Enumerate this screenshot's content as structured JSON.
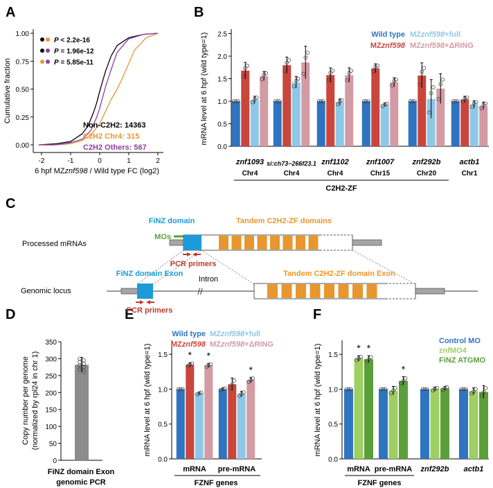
{
  "colors": {
    "wild_type": "#2f74c0",
    "mz": "#c9463d",
    "mz_full": "#8ec8e8",
    "mz_ring": "#d39ba3",
    "orange": "#e8962f",
    "purple": "#8e3da3",
    "blue_text": "#1c9bd8",
    "red_text": "#c0392b",
    "green_text": "#55a23c",
    "gray": "#8c8c8c",
    "control_mo": "#2f74c0",
    "znfmo4": "#8fc34a",
    "finz_atgmo": "#5b9f3a",
    "light_green": "#9fce62"
  },
  "panels": {
    "a": "A",
    "b": "B",
    "c": "C",
    "d": "D",
    "e": "E",
    "f": "F"
  },
  "panel_a": {
    "ylabel": "Cumulative fraction",
    "xlabel_pre": "6 hpf MZ",
    "xlabel_ital": "znf598",
    "xlabel_post": " / Wild type FC (log2)",
    "xticks": [
      "-2",
      "-1",
      "0",
      "1",
      "2"
    ],
    "yticks": [
      "0.00",
      "0.25",
      "0.50",
      "0.75",
      "1.00"
    ],
    "pvalues": [
      {
        "p": "P",
        "rest": " < 2.2e-16"
      },
      {
        "p": "P",
        "rest": " = 1.96e-12"
      },
      {
        "p": "P",
        "rest": " = 5.85e-11"
      }
    ],
    "legend": [
      "Non-C2H2: 14363",
      "C2H2 Chr4: 315",
      "C2H2 Others: 567"
    ]
  },
  "panel_b": {
    "ylabel": "mRNA level at 6 hpf (wild type=1)",
    "yticks": [
      "0.0",
      "0.5",
      "1.0",
      "1.5",
      "2.0",
      "2.5"
    ],
    "legend": {
      "wt": "Wild type",
      "mz_pre": "MZ",
      "mz_ital": "znf598",
      "full_pre": "MZ",
      "full_ital": "znf598",
      "full_post": "+full",
      "ring_pre": "MZ",
      "ring_ital": "znf598",
      "ring_post": "+ΔRING"
    },
    "genes": [
      {
        "name": "znf1093",
        "chr": "Chr4"
      },
      {
        "name": "si:ch73−266f23.1",
        "chr": "Chr4"
      },
      {
        "name": "znf1102",
        "chr": "Chr4"
      },
      {
        "name": "znf1007",
        "chr": "Chr15"
      },
      {
        "name": "znf292b",
        "chr": "Chr20"
      },
      {
        "name": "actb1",
        "chr": "Chr1"
      }
    ],
    "group_label": "C2H2-ZF"
  },
  "panel_c": {
    "processed_label": "Processed mRNAs",
    "genomic_label": "Genomic locus",
    "finz_domain": "FiNZ domain",
    "tandem_domains": "Tandem C2H2-ZF domains",
    "mos": "MOs",
    "pcr1": "PCR primers",
    "finz_exon": "FiNZ domain Exon",
    "intron": "Intron",
    "tandem_exon": "Tandem C2H2-ZF domain Exon",
    "pcr2": "PCR primers"
  },
  "panel_d": {
    "ylabel1": "Copy number per genome",
    "ylabel2": "(normalized by rpl24 in chr 1)",
    "yticks": [
      "0",
      "50",
      "100",
      "150",
      "200",
      "250",
      "300",
      "350"
    ],
    "xlabel1": "FiNZ domain Exon",
    "xlabel2": "genomic PCR"
  },
  "panel_e": {
    "ylabel": "mRNA level at 6 hpf (wild type=1)",
    "yticks": [
      "0.0",
      "0.5",
      "1.0",
      "1.5"
    ],
    "legend": {
      "wt": "Wild type",
      "mz_pre": "MZ",
      "mz_ital": "znf598",
      "full_pre": "MZ",
      "full_ital": "znf598",
      "full_post": "+full",
      "ring_pre": "MZ",
      "ring_ital": "znf598",
      "ring_post": "+ΔRING"
    },
    "groups": [
      "mRNA",
      "pre-mRNA"
    ],
    "group_label": "FZNF genes",
    "star": "*"
  },
  "panel_f": {
    "ylabel": "mRNA level at 6 hpf (wild type=1)",
    "yticks": [
      "0.0",
      "0.5",
      "1.0",
      "1.5"
    ],
    "legend": [
      "Control MO",
      "znfMO4",
      "FiNZ ATGMO"
    ],
    "groups": [
      "mRNA",
      "pre-mRNA",
      "znf292b",
      "actb1"
    ],
    "group_label": "FZNF genes",
    "star": "*"
  },
  "chart_data": [
    {
      "type": "line",
      "panel": "A",
      "xlabel": "6 hpf MZznf598 / Wild type FC (log2)",
      "ylabel": "Cumulative fraction",
      "xlim": [
        -2.2,
        2.2
      ],
      "ylim": [
        0,
        1
      ],
      "series": [
        {
          "name": "Non-C2H2: 14363",
          "x": [
            -2.1,
            -1.5,
            -1.0,
            -0.6,
            -0.4,
            -0.2,
            -0.1,
            0.0,
            0.2,
            0.4,
            0.6,
            1.0,
            1.5,
            2.0
          ],
          "y": [
            0.0,
            0.01,
            0.03,
            0.1,
            0.17,
            0.3,
            0.38,
            0.48,
            0.66,
            0.8,
            0.89,
            0.96,
            0.99,
            1.0
          ]
        },
        {
          "name": "C2H2 Chr4: 315",
          "x": [
            -2.1,
            -1.5,
            -1.0,
            -0.6,
            -0.3,
            0.0,
            0.2,
            0.4,
            0.6,
            0.8,
            1.0,
            1.2,
            1.6,
            2.0
          ],
          "y": [
            0.0,
            0.0,
            0.01,
            0.04,
            0.09,
            0.19,
            0.3,
            0.41,
            0.5,
            0.61,
            0.73,
            0.85,
            0.96,
            1.0
          ]
        },
        {
          "name": "C2H2 Others: 567",
          "x": [
            -2.1,
            -1.5,
            -1.0,
            -0.6,
            -0.3,
            -0.1,
            0.0,
            0.2,
            0.4,
            0.6,
            1.0,
            1.5,
            2.0
          ],
          "y": [
            0.0,
            0.0,
            0.02,
            0.05,
            0.13,
            0.25,
            0.33,
            0.52,
            0.68,
            0.83,
            0.95,
            0.99,
            1.0
          ]
        }
      ]
    },
    {
      "type": "bar",
      "panel": "B",
      "ylabel": "mRNA level at 6 hpf (wild type=1)",
      "ylim": [
        0,
        2.6
      ],
      "categories": [
        "znf1093",
        "si:ch73−266f23.1",
        "znf1102",
        "znf1007",
        "znf292b",
        "actb1"
      ],
      "series": [
        {
          "name": "Wild type",
          "values": [
            1.0,
            1.0,
            1.0,
            1.0,
            1.0,
            1.0
          ],
          "err": [
            0.0,
            0.0,
            0.0,
            0.0,
            0.0,
            0.0
          ]
        },
        {
          "name": "MZznf598",
          "values": [
            1.68,
            1.8,
            1.58,
            1.73,
            1.57,
            1.04
          ],
          "err": [
            0.18,
            0.18,
            0.16,
            0.1,
            0.28,
            0.07
          ]
        },
        {
          "name": "MZznf598+full",
          "values": [
            1.03,
            1.42,
            0.98,
            0.92,
            1.05,
            0.93
          ],
          "err": [
            0.08,
            0.13,
            0.07,
            0.04,
            0.43,
            0.08
          ]
        },
        {
          "name": "MZznf598+ΔRING",
          "values": [
            1.56,
            1.86,
            1.58,
            1.42,
            1.28,
            0.9
          ],
          "err": [
            0.1,
            0.36,
            0.16,
            0.1,
            0.33,
            0.08
          ]
        }
      ]
    },
    {
      "type": "bar",
      "panel": "D",
      "ylabel": "Copy number per genome (normalized by rpl24 in chr 1)",
      "ylim": [
        0,
        350
      ],
      "categories": [
        "FiNZ domain Exon genomic PCR"
      ],
      "values": [
        282
      ],
      "err": [
        22
      ]
    },
    {
      "type": "bar",
      "panel": "E",
      "ylabel": "mRNA level at 6 hpf (wild type=1)",
      "ylim": [
        0,
        1.7
      ],
      "categories": [
        "mRNA",
        "pre-mRNA"
      ],
      "series": [
        {
          "name": "Wild type",
          "values": [
            1.0,
            1.0
          ],
          "err": [
            0.0,
            0.02
          ]
        },
        {
          "name": "MZznf598",
          "values": [
            1.35,
            1.07
          ],
          "err": [
            0.03,
            0.09
          ]
        },
        {
          "name": "MZznf598+full",
          "values": [
            0.94,
            0.93
          ],
          "err": [
            0.02,
            0.04
          ]
        },
        {
          "name": "MZznf598+ΔRING",
          "values": [
            1.34,
            1.13
          ],
          "err": [
            0.03,
            0.04
          ]
        }
      ],
      "significant": [
        [
          false,
          true,
          false,
          true
        ],
        [
          false,
          false,
          false,
          true
        ]
      ]
    },
    {
      "type": "bar",
      "panel": "F",
      "ylabel": "mRNA level at 6 hpf (wild type=1)",
      "ylim": [
        0,
        1.7
      ],
      "categories": [
        "mRNA",
        "pre-mRNA",
        "znf292b",
        "actb1"
      ],
      "series": [
        {
          "name": "Control MO",
          "values": [
            1.0,
            1.0,
            1.0,
            1.0
          ],
          "err": [
            0.0,
            0.0,
            0.0,
            0.0
          ]
        },
        {
          "name": "znfMO4",
          "values": [
            1.44,
            0.98,
            1.0,
            0.97
          ],
          "err": [
            0.04,
            0.06,
            0.03,
            0.05
          ]
        },
        {
          "name": "FiNZ ATGMO",
          "values": [
            1.43,
            1.12,
            1.01,
            0.96
          ],
          "err": [
            0.05,
            0.06,
            0.03,
            0.09
          ]
        }
      ],
      "significant": [
        [
          false,
          true,
          true
        ],
        [
          false,
          false,
          true
        ],
        [
          false,
          false,
          false
        ],
        [
          false,
          false,
          false
        ]
      ]
    }
  ]
}
